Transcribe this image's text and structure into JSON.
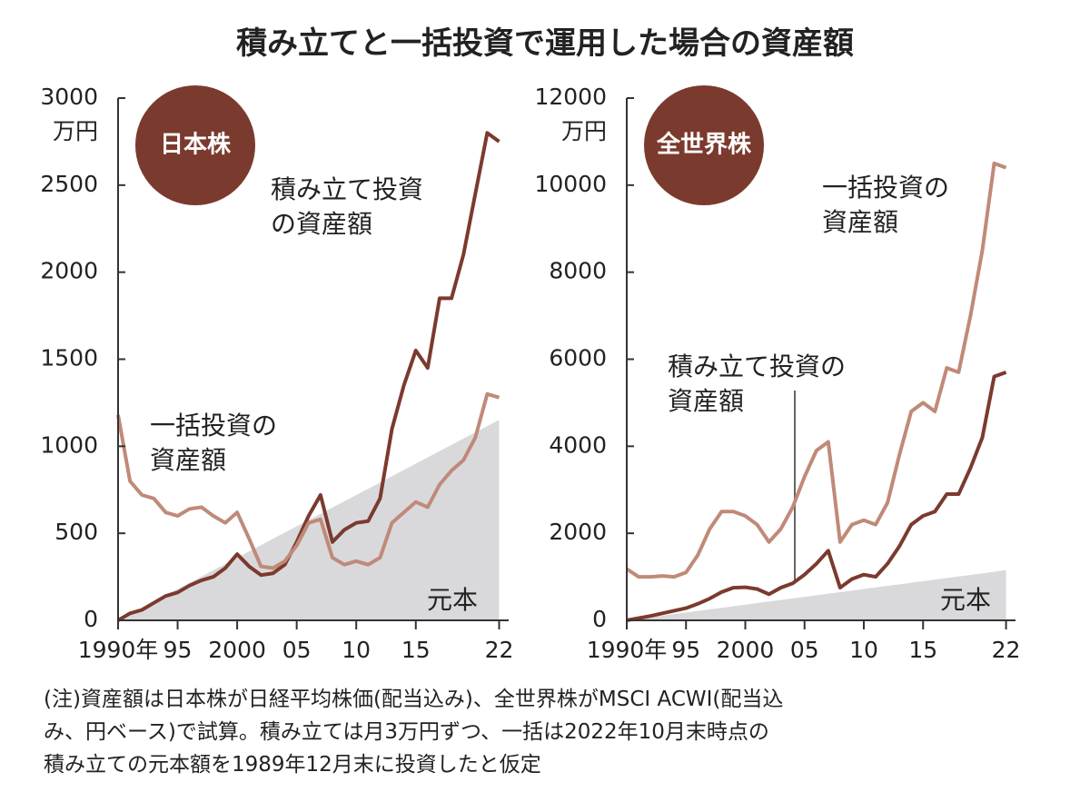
{
  "title": "積み立てと一括投資で運用した場合の資産額",
  "note": [
    "(注)資産額は日本株が日経平均株価(配当込み)、全世界株がMSCI ACWI(配当込",
    "み、円ベース)で試算。積み立ては月3万円ずつ、一括は2022年10月末時点の",
    "積み立ての元本額を1989年12月末に投資したと仮定"
  ],
  "chart_data": [
    {
      "type": "line",
      "badge": "日本株",
      "y_unit": "万円",
      "x": [
        1990,
        1991,
        1992,
        1993,
        1994,
        1995,
        1996,
        1997,
        1998,
        1999,
        2000,
        2001,
        2002,
        2003,
        2004,
        2005,
        2006,
        2007,
        2008,
        2009,
        2010,
        2011,
        2012,
        2013,
        2014,
        2015,
        2016,
        2017,
        2018,
        2019,
        2020,
        2021,
        2022
      ],
      "xlim": [
        1990,
        2022.8
      ],
      "xticks": [
        {
          "value": 1990,
          "label": "1990年"
        },
        {
          "value": 1995,
          "label": "95"
        },
        2000,
        {
          "value": 2005,
          "label": "05"
        },
        {
          "value": 2010,
          "label": "10"
        },
        {
          "value": 2015,
          "label": "15"
        },
        {
          "value": 2022,
          "label": "22"
        }
      ],
      "ylim": [
        0,
        3000
      ],
      "yticks": [
        0,
        500,
        1000,
        1500,
        2000,
        2500,
        3000
      ],
      "series": [
        {
          "name": "積み立て投資\nの資産額",
          "color": "#7b3a2e",
          "kind": "line",
          "values": [
            0,
            40,
            60,
            100,
            140,
            160,
            200,
            230,
            250,
            300,
            380,
            310,
            260,
            270,
            320,
            450,
            600,
            720,
            450,
            520,
            560,
            570,
            700,
            1100,
            1350,
            1550,
            1450,
            1850,
            1850,
            2100,
            2450,
            2800,
            2750
          ]
        },
        {
          "name": "一括投資の\n資産額",
          "color": "#c08a78",
          "kind": "line",
          "values": [
            1180,
            800,
            720,
            700,
            620,
            600,
            640,
            650,
            600,
            560,
            620,
            470,
            310,
            300,
            340,
            430,
            560,
            580,
            360,
            320,
            340,
            320,
            360,
            560,
            620,
            680,
            650,
            780,
            860,
            920,
            1050,
            1300,
            1280
          ]
        },
        {
          "name": "元本",
          "color": "#d9d9dc",
          "kind": "area",
          "values": [
            0,
            36,
            72,
            108,
            144,
            180,
            216,
            252,
            288,
            324,
            360,
            396,
            432,
            468,
            504,
            540,
            576,
            612,
            648,
            684,
            720,
            756,
            792,
            828,
            864,
            900,
            936,
            972,
            1008,
            1044,
            1080,
            1116,
            1152
          ]
        }
      ]
    },
    {
      "type": "line",
      "badge": "全世界株",
      "y_unit": "万円",
      "x": [
        1990,
        1991,
        1992,
        1993,
        1994,
        1995,
        1996,
        1997,
        1998,
        1999,
        2000,
        2001,
        2002,
        2003,
        2004,
        2005,
        2006,
        2007,
        2008,
        2009,
        2010,
        2011,
        2012,
        2013,
        2014,
        2015,
        2016,
        2017,
        2018,
        2019,
        2020,
        2021,
        2022
      ],
      "xlim": [
        1990,
        2022.8
      ],
      "xticks": [
        {
          "value": 1990,
          "label": "1990年"
        },
        {
          "value": 1995,
          "label": "95"
        },
        2000,
        {
          "value": 2005,
          "label": "05"
        },
        {
          "value": 2010,
          "label": "10"
        },
        {
          "value": 2015,
          "label": "15"
        },
        {
          "value": 2022,
          "label": "22"
        }
      ],
      "ylim": [
        0,
        12000
      ],
      "yticks": [
        0,
        2000,
        4000,
        6000,
        8000,
        10000,
        12000
      ],
      "series": [
        {
          "name": "積み立て投資の\n資産額",
          "color": "#7b3a2e",
          "kind": "line",
          "values": [
            0,
            50,
            100,
            160,
            220,
            280,
            380,
            500,
            650,
            750,
            760,
            720,
            600,
            750,
            850,
            1050,
            1300,
            1600,
            750,
            950,
            1050,
            1000,
            1300,
            1700,
            2200,
            2400,
            2500,
            2900,
            2900,
            3500,
            4200,
            5600,
            5700
          ]
        },
        {
          "name": "一括投資の\n資産額",
          "color": "#c08a78",
          "kind": "line",
          "values": [
            1180,
            1000,
            1000,
            1020,
            1000,
            1100,
            1500,
            2100,
            2500,
            2500,
            2400,
            2200,
            1800,
            2100,
            2600,
            3300,
            3900,
            4100,
            1800,
            2200,
            2300,
            2200,
            2700,
            3800,
            4800,
            5000,
            4800,
            5800,
            5700,
            7000,
            8500,
            10500,
            10400
          ]
        },
        {
          "name": "元本",
          "color": "#d9d9dc",
          "kind": "area",
          "values": [
            0,
            36,
            72,
            108,
            144,
            180,
            216,
            252,
            288,
            324,
            360,
            396,
            432,
            468,
            504,
            540,
            576,
            612,
            648,
            684,
            720,
            756,
            792,
            828,
            864,
            900,
            936,
            972,
            1008,
            1044,
            1080,
            1116,
            1152
          ]
        }
      ]
    }
  ]
}
